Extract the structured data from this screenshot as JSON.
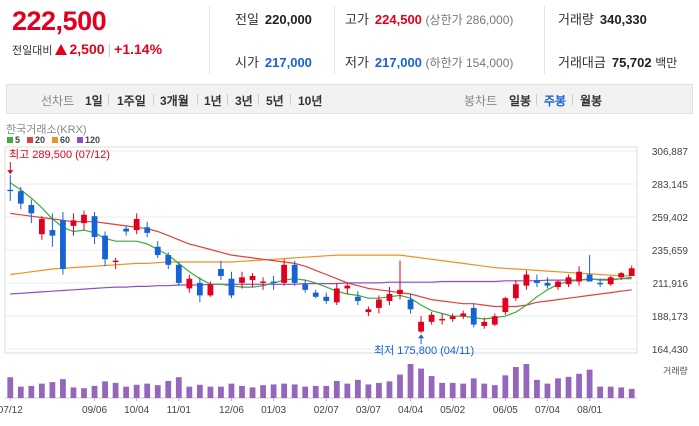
{
  "summary": {
    "price": "222,500",
    "change_label": "전일대비",
    "change_value": "2,500",
    "change_pct": "+1.14%"
  },
  "stats": {
    "prev_close": {
      "label": "전일",
      "value": "220,000"
    },
    "open": {
      "label": "시가",
      "value": "217,000"
    },
    "high": {
      "label": "고가",
      "value": "224,500",
      "sub": "(상한가 286,000)"
    },
    "low": {
      "label": "저가",
      "value": "217,000",
      "sub": "(하한가 154,000)"
    },
    "volume": {
      "label": "거래량",
      "value": "340,330"
    },
    "amount": {
      "label": "거래대금",
      "value": "75,702",
      "unit": "백만"
    }
  },
  "tabs": {
    "line_label": "선차트",
    "line_items": [
      "1일",
      "1주일",
      "3개월",
      "1년",
      "3년",
      "5년",
      "10년"
    ],
    "candle_label": "봉차트",
    "candle_items": [
      "일봉",
      "주봉",
      "월봉"
    ],
    "active": "주봉"
  },
  "colors": {
    "up": "#e3001c",
    "down": "#1563d4",
    "ma5": "#3daa3d",
    "ma20": "#e0413a",
    "ma60": "#f0901e",
    "ma120": "#8b4fc9",
    "volume": "#9467bd"
  },
  "chart_data": {
    "type": "candlestick",
    "source_label": "한국거래소(KRX)",
    "legend": [
      "5",
      "20",
      "60",
      "120"
    ],
    "y_ticks": [
      "306,887",
      "283,145",
      "259,402",
      "235,659",
      "211,916",
      "188,173",
      "164,430"
    ],
    "ylim": [
      164430,
      306887
    ],
    "x_labels": [
      "07/12",
      "09/06",
      "10/04",
      "11/01",
      "12/06",
      "01/03",
      "02/07",
      "03/07",
      "04/04",
      "05/02",
      "06/05",
      "07/04",
      "08/01"
    ],
    "x_label_index": [
      0,
      8,
      12,
      16,
      21,
      25,
      30,
      34,
      38,
      42,
      47,
      51,
      55
    ],
    "high_annotation": "최고 289,500 (07/12)",
    "low_annotation": "최저 175,800 (04/11)",
    "volume_label": "거래량",
    "candles": [
      [
        279000,
        289500,
        271000,
        278000
      ],
      [
        278000,
        281000,
        265000,
        269000
      ],
      [
        268000,
        272000,
        255000,
        262000
      ],
      [
        247000,
        260000,
        243000,
        258000
      ],
      [
        250000,
        262000,
        238000,
        246000
      ],
      [
        257000,
        263000,
        218000,
        222000
      ],
      [
        253000,
        262000,
        246000,
        257000
      ],
      [
        255000,
        264000,
        250000,
        261000
      ],
      [
        260000,
        263000,
        240000,
        245000
      ],
      [
        246000,
        249000,
        224000,
        229000
      ],
      [
        227000,
        230000,
        222000,
        228000
      ],
      [
        251000,
        253000,
        246000,
        249000
      ],
      [
        250000,
        262000,
        247000,
        258000
      ],
      [
        252000,
        256000,
        245000,
        248000
      ],
      [
        238000,
        242000,
        230000,
        232000
      ],
      [
        232000,
        234000,
        222000,
        225000
      ],
      [
        225000,
        227000,
        210000,
        212000
      ],
      [
        208000,
        218000,
        205000,
        215000
      ],
      [
        212000,
        216000,
        198000,
        203000
      ],
      [
        203000,
        213000,
        202000,
        211000
      ],
      [
        222000,
        228000,
        214000,
        217000
      ],
      [
        215000,
        220000,
        201000,
        203000
      ],
      [
        212000,
        220000,
        208000,
        216000
      ],
      [
        214000,
        219000,
        209000,
        217000
      ],
      [
        212000,
        216000,
        207000,
        213000
      ],
      [
        213000,
        217000,
        207000,
        212000
      ],
      [
        212000,
        229000,
        210000,
        225000
      ],
      [
        225000,
        228000,
        210000,
        212000
      ],
      [
        211000,
        214000,
        205000,
        207000
      ],
      [
        205000,
        207000,
        201000,
        202000
      ],
      [
        202000,
        205000,
        197000,
        199000
      ],
      [
        198000,
        212000,
        196000,
        208000
      ],
      [
        208000,
        212000,
        204000,
        210000
      ],
      [
        202000,
        206000,
        196000,
        199000
      ],
      [
        191000,
        195000,
        188000,
        193000
      ],
      [
        194000,
        203000,
        190000,
        200000
      ],
      [
        199000,
        209000,
        196000,
        204000
      ],
      [
        204000,
        228000,
        200000,
        207000
      ],
      [
        200000,
        204000,
        190000,
        193000
      ],
      [
        177000,
        188000,
        175800,
        184000
      ],
      [
        184000,
        191000,
        182000,
        189000
      ],
      [
        185000,
        190000,
        182000,
        186000
      ],
      [
        186000,
        190000,
        184000,
        188000
      ],
      [
        188000,
        192000,
        186000,
        190000
      ],
      [
        194000,
        197000,
        180000,
        182000
      ],
      [
        181000,
        187000,
        179000,
        184000
      ],
      [
        182000,
        190000,
        181000,
        188000
      ],
      [
        191000,
        202000,
        189000,
        201000
      ],
      [
        201000,
        214000,
        199000,
        211000
      ],
      [
        210000,
        221000,
        207000,
        218000
      ],
      [
        214000,
        218000,
        209000,
        212000
      ],
      [
        212000,
        216000,
        208000,
        210000
      ],
      [
        209000,
        214000,
        207000,
        213000
      ],
      [
        211000,
        218000,
        209000,
        216000
      ],
      [
        213000,
        224000,
        210000,
        220000
      ],
      [
        218000,
        232000,
        214000,
        213000
      ],
      [
        212000,
        215000,
        209000,
        211000
      ],
      [
        211000,
        217000,
        210000,
        216000
      ],
      [
        216000,
        220000,
        214000,
        219000
      ],
      [
        217000,
        224500,
        217000,
        222500
      ]
    ],
    "ma5": [
      284000,
      279000,
      273000,
      266000,
      258000,
      252000,
      249000,
      250000,
      248000,
      244000,
      242000,
      242000,
      242000,
      240000,
      236000,
      232000,
      226000,
      220000,
      215000,
      211000,
      211000,
      210000,
      209000,
      209000,
      210000,
      212000,
      214000,
      215000,
      214000,
      212000,
      209000,
      206000,
      204000,
      203000,
      201000,
      201000,
      202000,
      203000,
      201000,
      196000,
      192000,
      190000,
      188000,
      188000,
      187000,
      186000,
      187000,
      188000,
      191000,
      196000,
      202000,
      207000,
      211000,
      213000,
      214000,
      215000,
      214000,
      214000,
      215000,
      216000
    ],
    "ma20": [
      262000,
      261000,
      260000,
      259000,
      258000,
      257000,
      256000,
      256000,
      256000,
      255000,
      254000,
      253000,
      252000,
      251000,
      249000,
      246000,
      243000,
      240000,
      238000,
      236000,
      234000,
      232000,
      231000,
      230000,
      229000,
      228000,
      227000,
      226000,
      224000,
      221000,
      218000,
      215000,
      212000,
      210000,
      208000,
      207000,
      206000,
      205000,
      204000,
      202000,
      200000,
      199000,
      198000,
      197000,
      197000,
      196000,
      195000,
      195000,
      195000,
      196000,
      198000,
      199000,
      200000,
      201000,
      202000,
      203000,
      204000,
      205000,
      206000,
      207000
    ],
    "ma60": [
      218000,
      219000,
      220000,
      221000,
      222000,
      222500,
      223000,
      223500,
      224000,
      224500,
      225000,
      225500,
      226000,
      226000,
      226500,
      227000,
      227000,
      227000,
      227000,
      227000,
      227000,
      227000,
      227500,
      228000,
      228500,
      229000,
      229500,
      230000,
      230500,
      231000,
      231500,
      232000,
      232000,
      232000,
      232000,
      232000,
      232000,
      232000,
      231000,
      230000,
      229000,
      228000,
      227000,
      226000,
      225000,
      224000,
      223000,
      222500,
      222000,
      221500,
      221000,
      220500,
      220000,
      219500,
      219000,
      218500,
      218000,
      217500,
      217000,
      217000
    ],
    "ma120": [
      204000,
      204500,
      205000,
      205500,
      206000,
      206500,
      207000,
      207500,
      208000,
      208500,
      209000,
      209000,
      209500,
      209500,
      210000,
      210000,
      210500,
      210500,
      210500,
      211000,
      211000,
      211000,
      211000,
      211000,
      211000,
      211000,
      211000,
      211000,
      211500,
      211500,
      211500,
      211500,
      212000,
      212000,
      212000,
      212000,
      212500,
      212500,
      212500,
      212500,
      212500,
      213000,
      213000,
      213000,
      213000,
      213000,
      213000,
      213500,
      213500,
      213500,
      213500,
      214000,
      214000,
      214000,
      214000,
      214500,
      214500,
      214500,
      215000,
      215000
    ],
    "volume": [
      55,
      30,
      32,
      38,
      42,
      50,
      28,
      26,
      32,
      44,
      40,
      30,
      35,
      38,
      34,
      45,
      55,
      30,
      35,
      30,
      30,
      38,
      32,
      28,
      34,
      36,
      38,
      36,
      30,
      32,
      32,
      45,
      38,
      48,
      36,
      40,
      44,
      62,
      90,
      78,
      58,
      40,
      40,
      38,
      52,
      38,
      34,
      60,
      82,
      90,
      48,
      38,
      52,
      56,
      64,
      75,
      30,
      30,
      28,
      24
    ]
  }
}
